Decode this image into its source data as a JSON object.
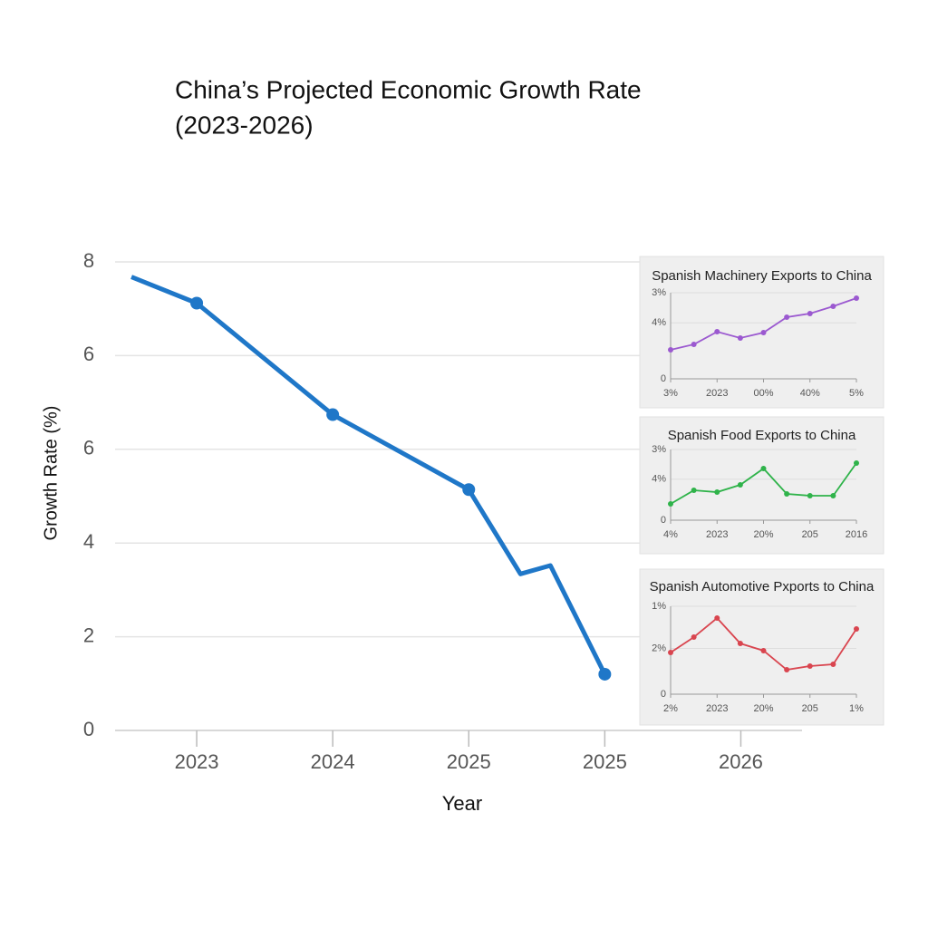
{
  "chart_data": [
    {
      "type": "line",
      "title": [
        "China’s Projected Economic Growth Rate",
        "(2023-2026)"
      ],
      "ylabel": "Growth Rate (%)",
      "xlabel": "Year",
      "x": [
        2022.52,
        2023,
        2024,
        2025,
        2025.38,
        2025.6,
        2026
      ],
      "values": [
        9.68,
        9.12,
        6.74,
        5.14,
        3.34,
        3.52,
        1.2
      ],
      "markers": [
        false,
        true,
        true,
        true,
        false,
        false,
        true
      ],
      "color": "#1f77c8",
      "xlim": [
        2022.4,
        2027.45
      ],
      "xticks": [
        2023,
        2024,
        2025,
        {
          "value": 2026,
          "label": "2025"
        },
        {
          "value": 2027,
          "label": "2026"
        }
      ],
      "ylim": [
        0,
        10
      ],
      "yticks": [
        0,
        2,
        4,
        6,
        {
          "value": 8,
          "label": "6"
        },
        {
          "value": 10,
          "label": "8"
        }
      ],
      "grid": true
    },
    {
      "type": "inset-line",
      "title": "Spanish Machinery Exports to China",
      "categories": [
        "3%",
        null,
        "2023",
        null,
        "00%",
        null,
        "40%",
        null,
        "5%"
      ],
      "values": [
        33.7,
        40,
        54.7,
        47.4,
        53.7,
        71.6,
        75.8,
        84.2,
        93.7
      ],
      "color": "#9b59d0",
      "ylim": [
        0,
        100
      ],
      "yticks": [
        0,
        {
          "value": 65,
          "label": "4%"
        },
        {
          "value": 100,
          "label": "3%"
        }
      ]
    },
    {
      "type": "inset-line",
      "title": "Spanish Food Exports to China",
      "categories": [
        "4%",
        null,
        "2023",
        null,
        "20%",
        null,
        "205",
        null,
        "2016"
      ],
      "values": [
        23.1,
        42.3,
        39.7,
        50,
        73.1,
        37.2,
        34.6,
        34.6,
        80.8
      ],
      "color": "#2fb34a",
      "ylim": [
        0,
        100
      ],
      "yticks": [
        0,
        {
          "value": 58,
          "label": "4%"
        },
        {
          "value": 100,
          "label": "3%"
        }
      ]
    },
    {
      "type": "inset-line",
      "title": "Spanish Automotive Pxports to China",
      "categories": [
        "2%",
        null,
        "2023",
        null,
        "20%",
        null,
        "205",
        null,
        "1%"
      ],
      "values": [
        47.4,
        64.9,
        86.6,
        57.7,
        49.5,
        27.8,
        32,
        34,
        74.2
      ],
      "color": "#d9454f",
      "ylim": [
        0,
        100
      ],
      "yticks": [
        0,
        {
          "value": 52,
          "label": "2%"
        },
        {
          "value": 100,
          "label": "1%"
        }
      ]
    }
  ]
}
